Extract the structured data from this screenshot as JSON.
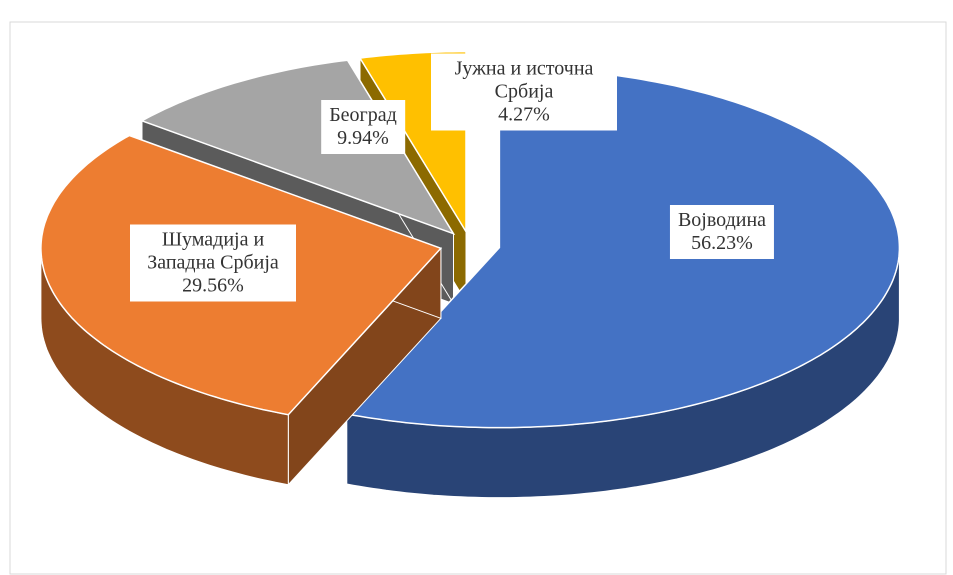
{
  "chart_data": {
    "type": "pie",
    "three_d": true,
    "exploded": true,
    "categories": [
      "Војводина",
      "Шумадија и Западна Србија",
      "Београд",
      "Јужна и источна Србија"
    ],
    "values": [
      56.23,
      29.56,
      9.94,
      4.27
    ],
    "value_labels": [
      "56.23%",
      "29.56%",
      "9.94%",
      "4.27%"
    ],
    "colors": [
      "#4472c4",
      "#ed7d31",
      "#a5a5a5",
      "#ffc000"
    ]
  }
}
